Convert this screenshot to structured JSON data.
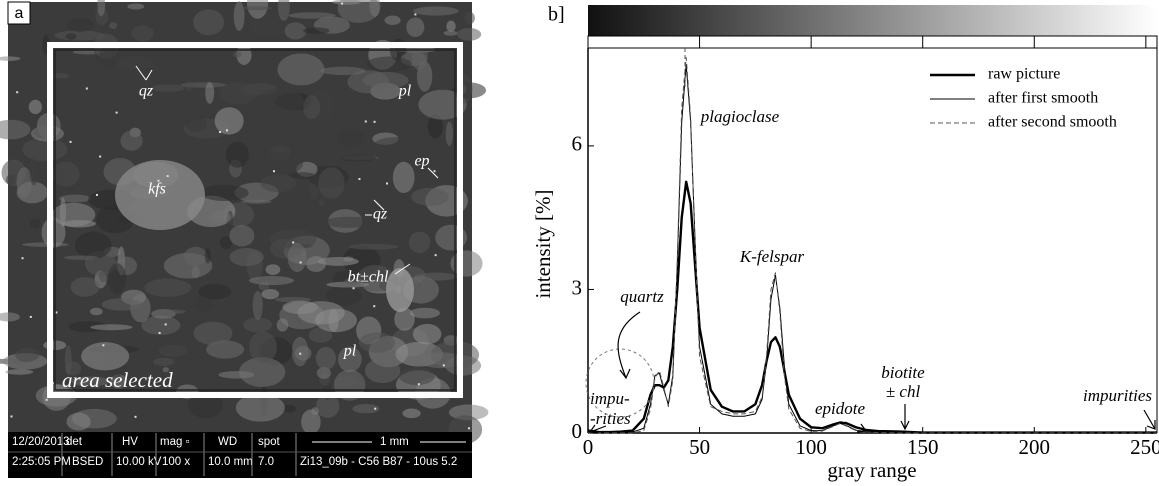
{
  "image_panel": {
    "panel_label": "a",
    "labels": [
      "qz",
      "pl",
      "ep",
      "kfs",
      "qz",
      "bt±chl",
      "pl"
    ],
    "selection_label": "area selected",
    "info_bar": {
      "row1": [
        "12/20/2013",
        "det",
        "HV",
        "mag ▫",
        "WD",
        "spot",
        "1 mm"
      ],
      "row2": [
        "2:25:05 PM",
        "BSED",
        "10.00 kV",
        "100 x",
        "10.0 mm",
        "7.0",
        "Zi13_09b - C56 B87 - 10us 5.2"
      ]
    }
  },
  "chart_data": {
    "type": "line",
    "panel_label": "b]",
    "xlabel": "gray range",
    "ylabel": "intensity [%]",
    "x": [
      0,
      5,
      10,
      15,
      20,
      25,
      28,
      30,
      32,
      34,
      36,
      38,
      40,
      42,
      44,
      46,
      48,
      50,
      55,
      60,
      65,
      70,
      75,
      78,
      80,
      82,
      84,
      86,
      88,
      90,
      95,
      100,
      105,
      110,
      113,
      116,
      120,
      125,
      130,
      140,
      150,
      160,
      180,
      200,
      220,
      240,
      255
    ],
    "series": [
      {
        "name": "raw picture",
        "color": "#000000",
        "values": [
          0.05,
          0.02,
          0.02,
          0.03,
          0.05,
          0.3,
          0.8,
          1.0,
          1.0,
          0.95,
          1.1,
          1.8,
          3.0,
          4.5,
          5.25,
          4.8,
          3.5,
          2.2,
          0.9,
          0.55,
          0.45,
          0.45,
          0.6,
          1.0,
          1.5,
          1.9,
          2.0,
          1.8,
          1.3,
          0.8,
          0.3,
          0.12,
          0.1,
          0.18,
          0.22,
          0.2,
          0.12,
          0.06,
          0.04,
          0.03,
          0.01,
          0.01,
          0.01,
          0.01,
          0.01,
          0.01,
          0.01
        ]
      },
      {
        "name": "after first smooth",
        "color": "#000000",
        "values": [
          0.02,
          0.01,
          0.01,
          0.01,
          0.02,
          0.1,
          0.6,
          1.2,
          1.25,
          0.9,
          0.6,
          1.2,
          3.5,
          6.5,
          7.7,
          6.5,
          4.0,
          1.8,
          0.6,
          0.4,
          0.35,
          0.35,
          0.4,
          0.7,
          1.5,
          2.8,
          3.3,
          2.6,
          1.4,
          0.6,
          0.15,
          0.05,
          0.05,
          0.15,
          0.2,
          0.15,
          0.06,
          0.03,
          0.02,
          0.01,
          0.01,
          0.01,
          0.01,
          0.01,
          0.01,
          0.01,
          0.01
        ]
      },
      {
        "name": "after second smooth",
        "color": "#555555",
        "values": [
          0.0,
          0.0,
          0.0,
          0.0,
          0.0,
          0.05,
          0.5,
          1.15,
          1.3,
          0.95,
          0.55,
          1.1,
          3.6,
          6.8,
          7.85,
          6.6,
          3.9,
          1.6,
          0.55,
          0.45,
          0.4,
          0.4,
          0.45,
          0.75,
          1.6,
          3.0,
          3.35,
          2.5,
          1.2,
          0.5,
          0.1,
          0.03,
          0.04,
          0.14,
          0.2,
          0.14,
          0.05,
          0.02,
          0.01,
          0.0,
          0.0,
          0.0,
          0.0,
          0.0,
          0.0,
          0.0,
          0.0
        ]
      }
    ],
    "annotations": [
      "plagioclase",
      "quartz",
      "K-felspar",
      "epidote",
      "biotite",
      "± chl",
      "impu-",
      "-rities",
      "impurities"
    ],
    "xlim": [
      0,
      255
    ],
    "xticks": [
      0,
      50,
      100,
      150,
      200,
      250
    ],
    "ylim": [
      0,
      7.9
    ],
    "yticks": [
      0,
      3,
      6
    ],
    "legend": "upper right"
  }
}
